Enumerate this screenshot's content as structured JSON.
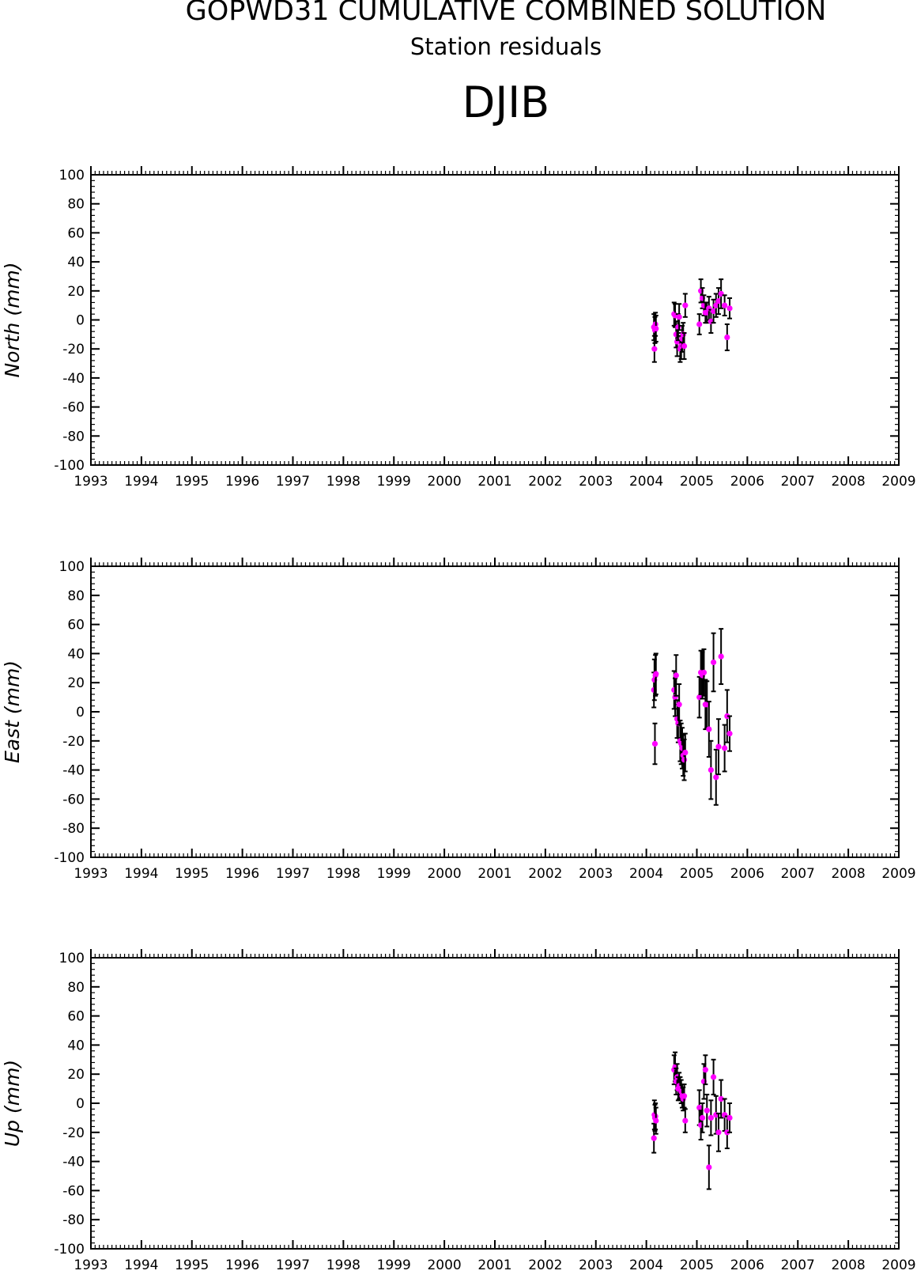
{
  "header": {
    "title": "GOPWD31 CUMULATIVE COMBINED SOLUTION",
    "subtitle": "Station residuals",
    "station": "DJIB"
  },
  "colors": {
    "points": "#ff00ff",
    "error_bars": "#000000",
    "axes": "#000000"
  },
  "chart_data": [
    {
      "type": "scatter",
      "ylabel": "North (mm)",
      "xlim": [
        1993,
        2009
      ],
      "ylim": [
        -100,
        100
      ],
      "x_ticks": [
        "1993",
        "1994",
        "1995",
        "1996",
        "1997",
        "1998",
        "1999",
        "2000",
        "2001",
        "2002",
        "2003",
        "2004",
        "2005",
        "2006",
        "2007",
        "2008",
        "2009"
      ],
      "y_ticks": [
        "100",
        "80",
        "60",
        "40",
        "20",
        "0",
        "-20",
        "-40",
        "-60",
        "-80",
        "-100"
      ],
      "grid": false,
      "series": [
        {
          "x": [
            2004.15,
            2004.16,
            2004.17,
            2004.18,
            2004.19,
            2004.55,
            2004.57,
            2004.59,
            2004.61,
            2004.63,
            2004.65,
            2004.67,
            2004.69,
            2004.71,
            2004.73,
            2004.75,
            2004.77,
            2005.05,
            2005.08,
            2005.11,
            2005.14,
            2005.17,
            2005.2,
            2005.24,
            2005.28,
            2005.33,
            2005.38,
            2005.43,
            2005.48,
            2005.55,
            2005.6,
            2005.65
          ],
          "y": [
            -5,
            -20,
            -7,
            -3,
            -6,
            4,
            3,
            -10,
            -15,
            -5,
            2,
            -20,
            -18,
            -13,
            -10,
            -18,
            10,
            -3,
            20,
            15,
            10,
            5,
            5,
            8,
            -1,
            6,
            10,
            13,
            18,
            10,
            -12,
            8
          ],
          "err": [
            9,
            9,
            9,
            8,
            9,
            8,
            8,
            9,
            10,
            9,
            9,
            9,
            9,
            9,
            8,
            9,
            8,
            7,
            8,
            7,
            7,
            7,
            7,
            8,
            8,
            8,
            8,
            9,
            10,
            7,
            9,
            7
          ]
        }
      ]
    },
    {
      "type": "scatter",
      "ylabel": "East (mm)",
      "xlim": [
        1993,
        2009
      ],
      "ylim": [
        -100,
        100
      ],
      "x_ticks": [
        "1993",
        "1994",
        "1995",
        "1996",
        "1997",
        "1998",
        "1999",
        "2000",
        "2001",
        "2002",
        "2003",
        "2004",
        "2005",
        "2006",
        "2007",
        "2008",
        "2009"
      ],
      "y_ticks": [
        "100",
        "80",
        "60",
        "40",
        "20",
        "0",
        "-20",
        "-40",
        "-60",
        "-80",
        "-100"
      ],
      "grid": false,
      "series": [
        {
          "x": [
            2004.15,
            2004.16,
            2004.17,
            2004.18,
            2004.19,
            2004.55,
            2004.57,
            2004.59,
            2004.61,
            2004.63,
            2004.65,
            2004.67,
            2004.69,
            2004.71,
            2004.73,
            2004.75,
            2004.77,
            2005.05,
            2005.08,
            2005.11,
            2005.14,
            2005.17,
            2005.2,
            2005.24,
            2005.28,
            2005.33,
            2005.38,
            2005.43,
            2005.48,
            2005.55,
            2005.6,
            2005.65
          ],
          "y": [
            15,
            22,
            -22,
            25,
            26,
            15,
            10,
            25,
            -5,
            -8,
            5,
            -20,
            -22,
            -25,
            -30,
            -33,
            -28,
            10,
            27,
            25,
            27,
            5,
            5,
            -12,
            -40,
            34,
            -45,
            -24,
            38,
            -25,
            -3,
            -15
          ],
          "err": [
            12,
            14,
            14,
            14,
            14,
            13,
            13,
            14,
            13,
            13,
            14,
            14,
            14,
            14,
            14,
            14,
            13,
            14,
            15,
            16,
            16,
            17,
            16,
            19,
            20,
            20,
            19,
            19,
            19,
            16,
            18,
            12
          ]
        }
      ]
    },
    {
      "type": "scatter",
      "ylabel": "Up (mm)",
      "xlim": [
        1993,
        2009
      ],
      "ylim": [
        -100,
        100
      ],
      "x_ticks": [
        "1993",
        "1994",
        "1995",
        "1996",
        "1997",
        "1998",
        "1999",
        "2000",
        "2001",
        "2002",
        "2003",
        "2004",
        "2005",
        "2006",
        "2007",
        "2008",
        "2009"
      ],
      "y_ticks": [
        "100",
        "80",
        "60",
        "40",
        "20",
        "0",
        "-20",
        "-40",
        "-60",
        "-80",
        "-100"
      ],
      "grid": false,
      "series": [
        {
          "x": [
            2004.15,
            2004.16,
            2004.17,
            2004.18,
            2004.19,
            2004.55,
            2004.57,
            2004.59,
            2004.61,
            2004.63,
            2004.65,
            2004.67,
            2004.69,
            2004.71,
            2004.73,
            2004.75,
            2004.77,
            2005.05,
            2005.08,
            2005.11,
            2005.14,
            2005.17,
            2005.2,
            2005.24,
            2005.28,
            2005.33,
            2005.38,
            2005.43,
            2005.48,
            2005.55,
            2005.6,
            2005.65
          ],
          "y": [
            -24,
            -8,
            -10,
            -9,
            -12,
            23,
            25,
            15,
            18,
            10,
            12,
            10,
            8,
            5,
            3,
            5,
            -12,
            -3,
            -15,
            -10,
            15,
            23,
            -5,
            -44,
            -10,
            18,
            -8,
            -20,
            3,
            -8,
            -20,
            -10
          ],
          "err": [
            10,
            10,
            9,
            9,
            9,
            10,
            10,
            9,
            9,
            8,
            9,
            8,
            8,
            8,
            8,
            8,
            8,
            12,
            10,
            10,
            12,
            10,
            11,
            15,
            12,
            12,
            13,
            13,
            13,
            11,
            11,
            10
          ]
        }
      ]
    }
  ]
}
